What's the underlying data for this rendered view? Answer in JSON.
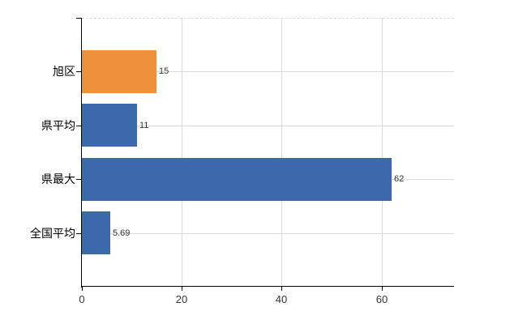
{
  "chart_data": {
    "type": "bar",
    "orientation": "horizontal",
    "title": "",
    "xlabel": "",
    "ylabel": "",
    "categories": [
      "旭区",
      "県平均",
      "県最大",
      "全国平均"
    ],
    "values": [
      15,
      11,
      62,
      5.69
    ],
    "value_labels": [
      "15",
      "11",
      "62",
      "5.69"
    ],
    "bar_colors": [
      "#ee913c",
      "#3c69ab",
      "#3c69ab",
      "#3c69ab"
    ],
    "x_ticks": [
      0,
      20,
      40,
      60
    ],
    "x_tick_labels": [
      "0",
      "20",
      "40",
      "60"
    ],
    "xlim": [
      0,
      74.5
    ],
    "grid": true,
    "legend": false,
    "colors": {
      "bar_blue": "#3c69ab",
      "bar_orange": "#ee913c",
      "axis": "#000000",
      "grid": "#d9d9d9",
      "tick_label": "#333333",
      "category_label": "#000000",
      "background": "#ffffff"
    }
  }
}
